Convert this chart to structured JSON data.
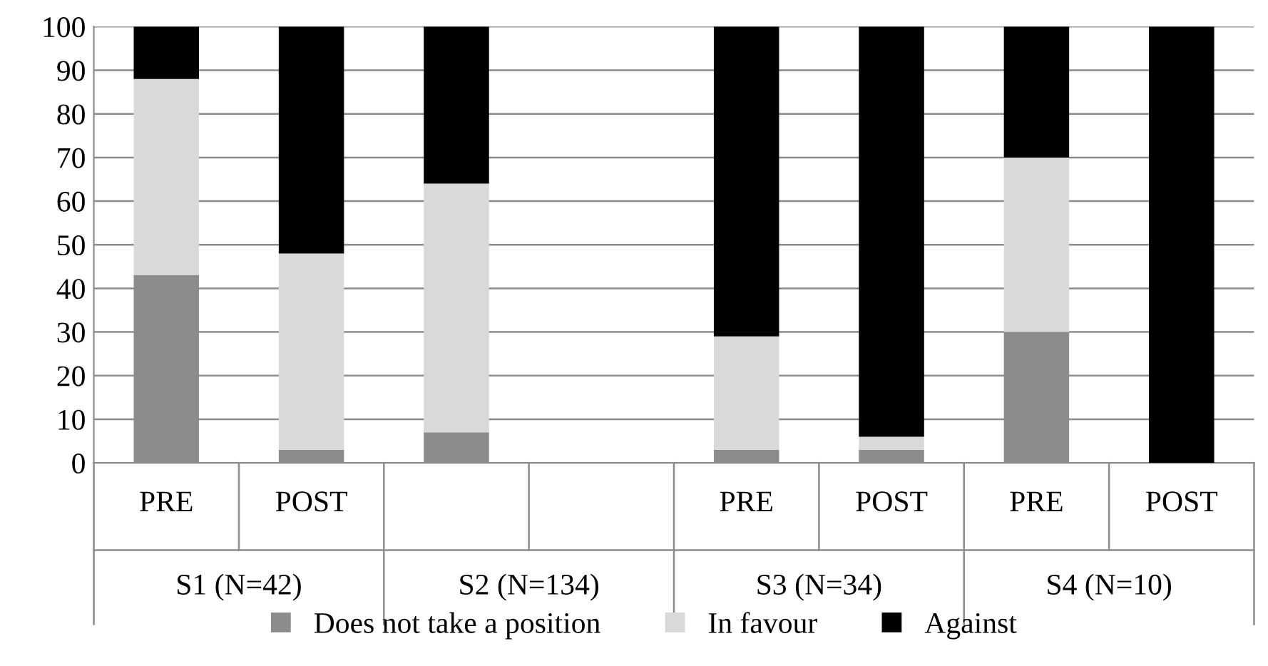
{
  "chart_data": {
    "type": "bar",
    "stacked": true,
    "categories": [
      "PRE",
      "POST",
      null,
      null,
      "PRE",
      "POST",
      "PRE",
      "POST"
    ],
    "series": [
      {
        "name": "Does not take a position",
        "color": "#8c8c8c",
        "values": [
          43,
          3,
          7,
          null,
          3,
          3,
          30,
          0
        ]
      },
      {
        "name": "In favour",
        "color": "#d9d9d9",
        "values": [
          45,
          45,
          57,
          null,
          26,
          3,
          40,
          0
        ]
      },
      {
        "name": "Against",
        "color": "#000000",
        "values": [
          12,
          52,
          36,
          null,
          71,
          94,
          30,
          100
        ]
      }
    ],
    "annotations": [
      "S1 (N=42)",
      "S2 (N=134)",
      "S3 (N=34)",
      "S4 (N=10)"
    ],
    "ylim": [
      0,
      100
    ],
    "yticks": [
      0,
      10,
      20,
      30,
      40,
      50,
      60,
      70,
      80,
      90,
      100
    ],
    "grid": "y",
    "legend": "bottom"
  }
}
